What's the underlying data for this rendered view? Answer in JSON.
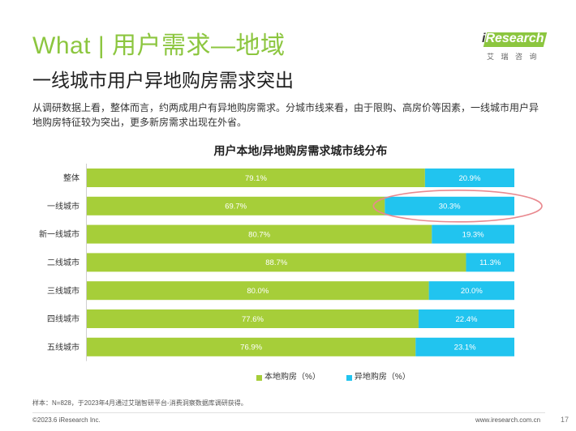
{
  "header": {
    "title": "What | 用户需求—地域",
    "subtitle": "一线城市用户异地购房需求突出",
    "description": "从调研数据上看，整体而言，约两成用户有异地购房需求。分城市线来看，由于限购、高房价等因素，一线城市用户异地购房特征较为突出，更多新房需求出现在外省。"
  },
  "logo": {
    "brand_i": "i",
    "brand_rest": "Research",
    "tagline": "艾 瑞 咨 询"
  },
  "chart_data": {
    "type": "bar",
    "orientation": "horizontal",
    "stacked": true,
    "title": "用户本地/异地购房需求城市线分布",
    "xlabel": "",
    "ylabel": "",
    "xlim": [
      0,
      100
    ],
    "grid": false,
    "legend_position": "bottom",
    "value_suffix": "%",
    "categories": [
      "整体",
      "一线城市",
      "新一线城市",
      "二线城市",
      "三线城市",
      "四线城市",
      "五线城市"
    ],
    "series": [
      {
        "name": "本地购房（%）",
        "color": "#a6ce39",
        "values": [
          79.1,
          69.7,
          80.7,
          88.7,
          80.0,
          77.6,
          76.9
        ]
      },
      {
        "name": "异地购房（%）",
        "color": "#21c4ef",
        "values": [
          20.9,
          30.3,
          19.3,
          11.3,
          20.0,
          22.4,
          23.1
        ]
      }
    ],
    "highlight": {
      "category": "一线城市",
      "series": "异地购房（%）",
      "color": "#e9898f"
    }
  },
  "footer": {
    "note": "样本：N=828，于2023年4月通过艾瑞智研平台-消费洞察数据库调研获得。",
    "copyright": "©2023.6 iResearch Inc.",
    "website": "www.iresearch.com.cn",
    "page_number": "17"
  },
  "colors": {
    "accent": "#8cc63f"
  }
}
